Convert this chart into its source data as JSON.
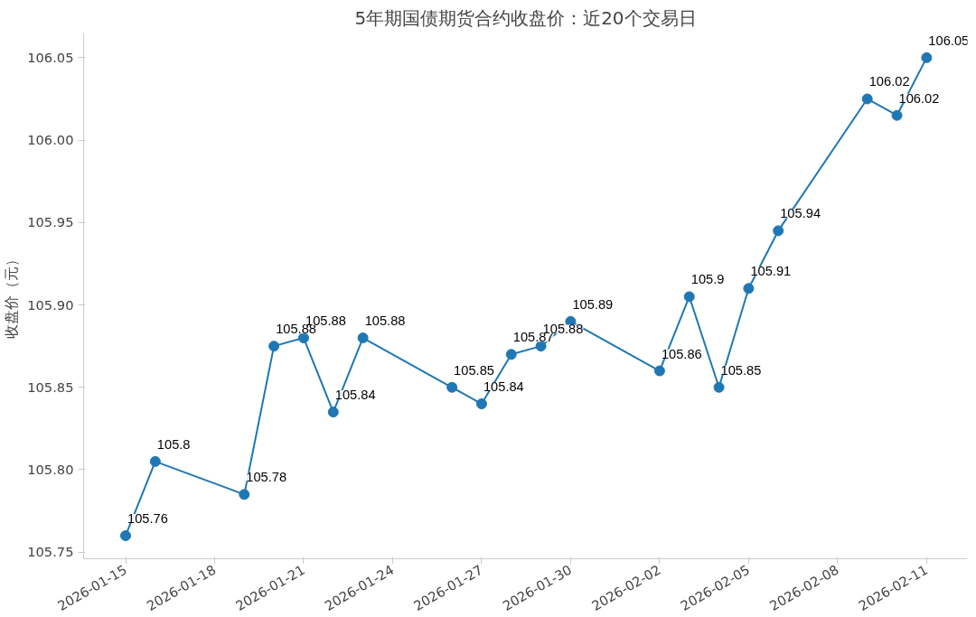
{
  "chart_data": {
    "type": "line",
    "title": "5年期国债期货合约收盘价：近20个交易日",
    "ylabel": "收盘价（元）",
    "x": [
      "2026-01-15",
      "2026-01-16",
      "2026-01-19",
      "2026-01-20",
      "2026-01-21",
      "2026-01-22",
      "2026-01-23",
      "2026-01-26",
      "2026-01-27",
      "2026-01-28",
      "2026-01-29",
      "2026-01-30",
      "2026-02-02",
      "2026-02-03",
      "2026-02-04",
      "2026-02-05",
      "2026-02-06",
      "2026-02-09",
      "2026-02-10",
      "2026-02-11"
    ],
    "series": [
      {
        "color": "#1f77b4",
        "values": [
          105.76,
          105.805,
          105.785,
          105.875,
          105.88,
          105.835,
          105.88,
          105.85,
          105.84,
          105.87,
          105.875,
          105.89,
          105.86,
          105.905,
          105.85,
          105.91,
          105.945,
          106.025,
          106.015,
          106.05
        ],
        "value_labels": [
          "105.76",
          "105.8",
          "105.78",
          "105.88",
          "105.88",
          "105.84",
          "105.88",
          "105.85",
          "105.84",
          "105.87",
          "105.88",
          "105.89",
          "105.86",
          "105.9",
          "105.85",
          "105.91",
          "105.94",
          "106.02",
          "106.02",
          "106.05"
        ]
      }
    ],
    "xlim": [
      "2026-01-13T14:00",
      "2026-02-12T09:00"
    ],
    "xticks": [
      "2026-01-15",
      "2026-01-18",
      "2026-01-21",
      "2026-01-24",
      "2026-01-27",
      "2026-01-30",
      "2026-02-02",
      "2026-02-05",
      "2026-02-08",
      "2026-02-11"
    ],
    "ylim": [
      105.746,
      106.065
    ],
    "yticks": [
      105.75,
      {
        "value": 105.8,
        "label": "105.80"
      },
      105.85,
      {
        "value": 105.9,
        "label": "105.90"
      },
      105.95,
      {
        "value": 106.0,
        "label": "106.00"
      },
      106.05
    ],
    "marker": "circle",
    "line_style": "solid",
    "grid": false
  }
}
